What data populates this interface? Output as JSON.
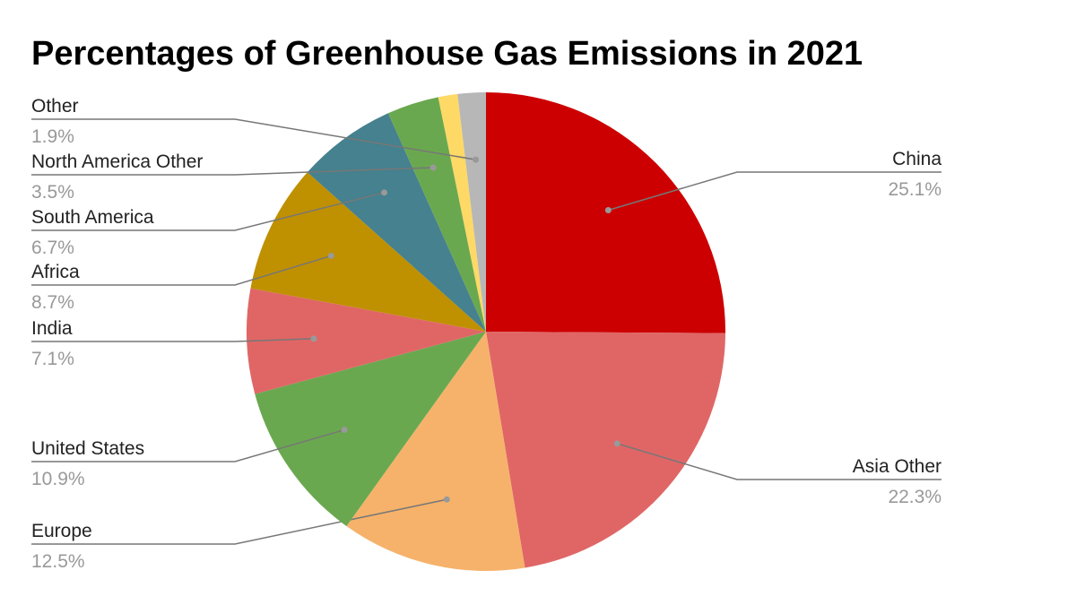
{
  "chart_data": {
    "type": "pie",
    "title": "Percentages of Greenhouse Gas Emissions in 2021",
    "categories": [
      "China",
      "Asia Other",
      "Europe",
      "United States",
      "India",
      "Africa",
      "South America",
      "North America Other",
      null,
      "Other"
    ],
    "values": [
      25.1,
      22.3,
      12.5,
      10.9,
      7.1,
      8.7,
      6.7,
      3.5,
      1.3,
      1.9
    ],
    "value_labels": [
      "25.1%",
      "22.3%",
      "12.5%",
      "10.9%",
      "7.1%",
      "8.7%",
      "6.7%",
      "3.5%",
      null,
      "1.9%"
    ],
    "colors": [
      "#cc0000",
      "#e06666",
      "#f6b26b",
      "#6aa84f",
      "#e06666",
      "#bf9000",
      "#45818e",
      "#6aa84f",
      "#ffd966",
      "#b7b7b7"
    ]
  }
}
